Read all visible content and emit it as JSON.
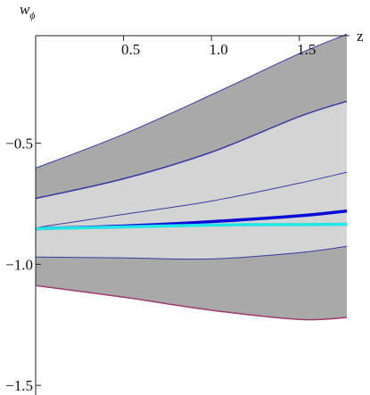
{
  "chart_data": {
    "type": "band-line",
    "y_label": {
      "main": "w",
      "sub": "ϕ"
    },
    "x_label": "z",
    "x": [
      0,
      0.5,
      1.0,
      1.5,
      1.77
    ],
    "xlim": [
      0,
      1.77
    ],
    "ylim": [
      -1.54,
      -0.056
    ],
    "xticks": [
      0.5,
      {
        "value": 1.0,
        "label": "1.0"
      },
      1.5
    ],
    "yticks": [
      {
        "value": -0.5,
        "label": "−0.5"
      },
      {
        "value": -1.0,
        "label": "−1.0"
      },
      {
        "value": -1.5,
        "label": "−1.5"
      }
    ],
    "series": [
      {
        "color": "#3a3aa0",
        "width": 1,
        "values": [
          -0.603,
          -0.463,
          -0.3,
          -0.13,
          -0.05
        ]
      },
      {
        "color": "#3a3aa0",
        "width": 1.5,
        "values": [
          -0.728,
          -0.647,
          -0.537,
          -0.39,
          -0.327
        ]
      },
      {
        "color": "#3a3aa0",
        "width": 1,
        "values": [
          -0.849,
          -0.794,
          -0.739,
          -0.665,
          -0.62
        ]
      },
      {
        "color": "#0a0ad8",
        "width": 3.5,
        "values": [
          -0.853,
          -0.842,
          -0.824,
          -0.8,
          -0.78
        ]
      },
      {
        "color": "#22e5e5",
        "width": 3.5,
        "values": [
          -0.853,
          -0.846,
          -0.838,
          -0.836,
          -0.835
        ]
      },
      {
        "color": "#3a3aa0",
        "width": 1,
        "values": [
          -0.97,
          -0.974,
          -0.978,
          -0.952,
          -0.926
        ]
      },
      {
        "color": "#a03a70",
        "width": 1.5,
        "values": [
          -1.088,
          -1.136,
          -1.19,
          -1.228,
          -1.22
        ]
      }
    ],
    "bands": [
      {
        "between": [
          0,
          6
        ],
        "color": "#a9a9a9"
      },
      {
        "between": [
          1,
          5
        ],
        "color": "#d4d4d4"
      }
    ]
  }
}
